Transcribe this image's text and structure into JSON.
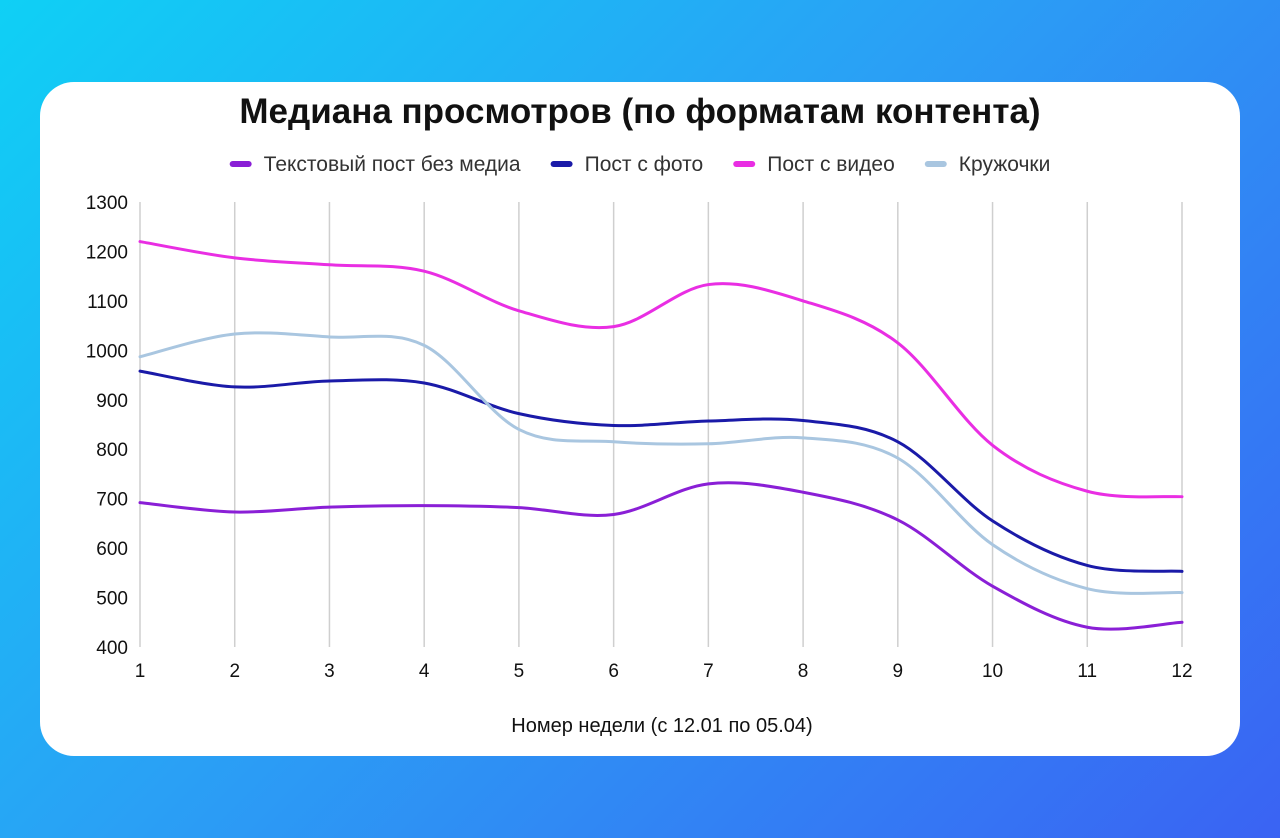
{
  "chart_data": {
    "type": "line",
    "title": "Медиана просмотров (по форматам контента)",
    "xlabel": "Номер недели (с 12.01 по 05.04)",
    "ylabel": "",
    "x": [
      1,
      2,
      3,
      4,
      5,
      6,
      7,
      8,
      9,
      10,
      11,
      12
    ],
    "ylim": [
      400,
      1300
    ],
    "yticks": [
      400,
      500,
      600,
      700,
      800,
      900,
      1000,
      1100,
      1200,
      1300
    ],
    "grid": "vertical",
    "legend": "top",
    "smooth": true,
    "series": [
      {
        "name": "Текстовый пост без медиа",
        "color": "#8a1fd6",
        "values": [
          692,
          673,
          683,
          686,
          682,
          668,
          730,
          713,
          657,
          523,
          440,
          450
        ]
      },
      {
        "name": "Пост с фото",
        "color": "#1a1aa8",
        "values": [
          958,
          926,
          938,
          934,
          872,
          848,
          857,
          858,
          815,
          655,
          565,
          553
        ]
      },
      {
        "name": "Пост с видео",
        "color": "#e92ee3",
        "values": [
          1220,
          1187,
          1173,
          1160,
          1080,
          1048,
          1133,
          1100,
          1015,
          808,
          715,
          704
        ]
      },
      {
        "name": "Кружочки",
        "color": "#a9c6e0",
        "values": [
          987,
          1033,
          1027,
          1010,
          840,
          815,
          811,
          823,
          782,
          607,
          518,
          510
        ]
      }
    ]
  }
}
